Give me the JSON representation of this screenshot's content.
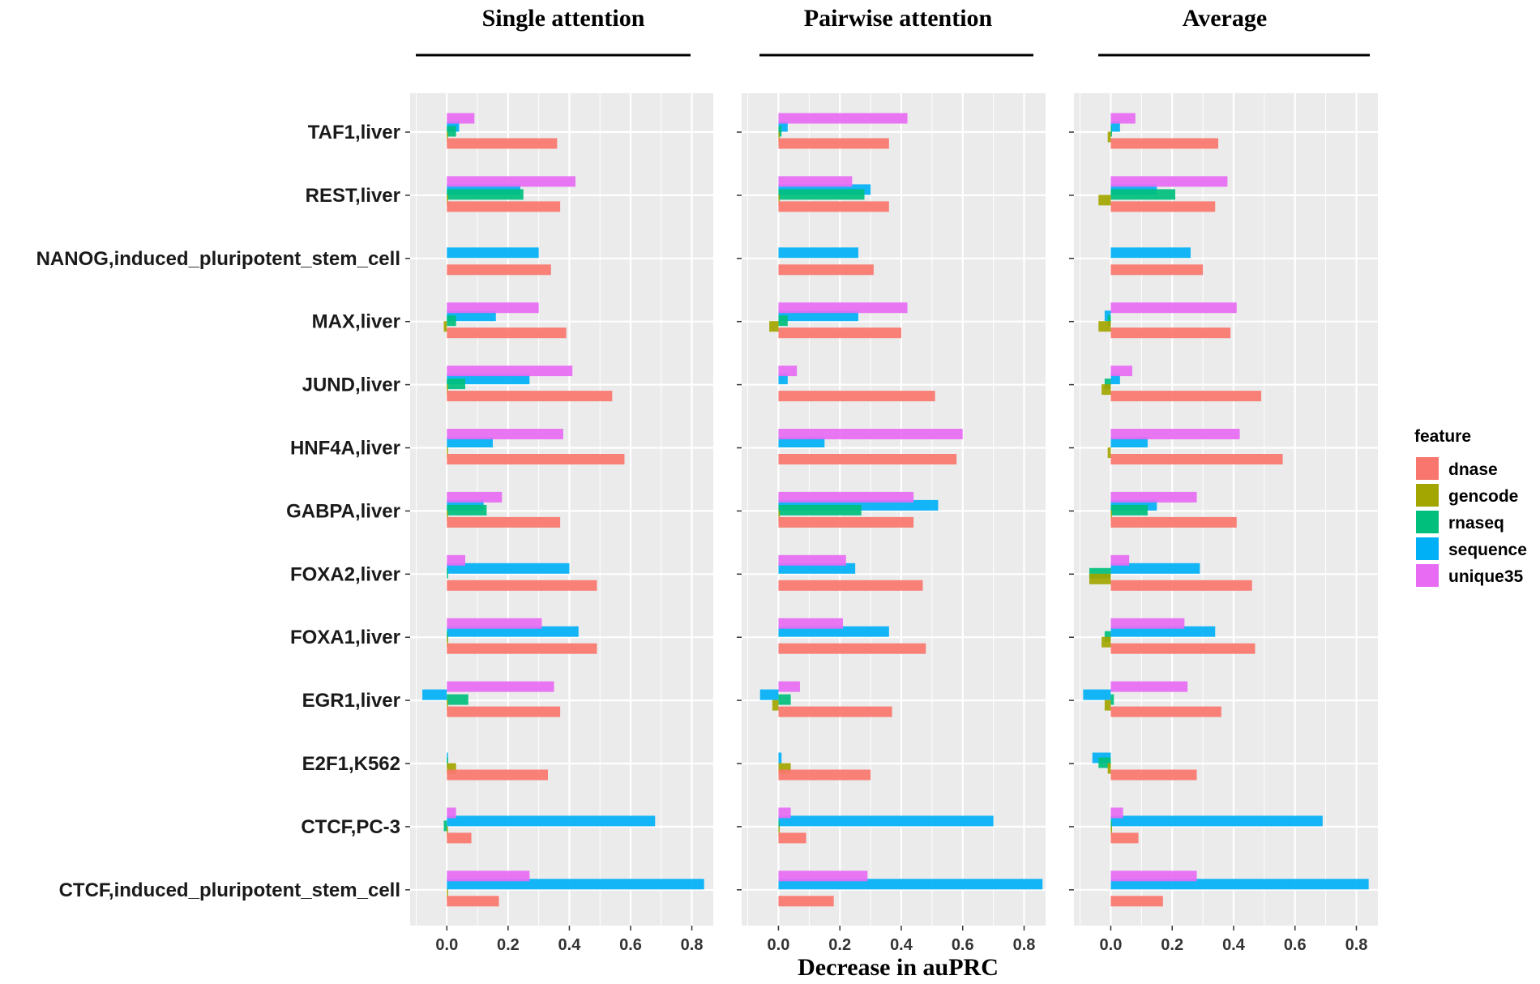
{
  "chart_data": {
    "type": "bar",
    "orientation": "horizontal",
    "panels": [
      "Single attention",
      "Pairwise attention",
      "Average"
    ],
    "xlabel": "Decrease in auPRC",
    "x_ticks": [
      "0.0",
      "0.2",
      "0.4",
      "0.6",
      "0.8"
    ],
    "xlim": [
      -0.12,
      0.87
    ],
    "grid": true,
    "legend": {
      "title": "feature",
      "position": "right"
    },
    "series": [
      {
        "name": "dnase",
        "color": "#f8766d"
      },
      {
        "name": "gencode",
        "color": "#a3a500"
      },
      {
        "name": "rnaseq",
        "color": "#00bf7d"
      },
      {
        "name": "sequence",
        "color": "#00b0f6"
      },
      {
        "name": "unique35",
        "color": "#e76bf3"
      }
    ],
    "categories": [
      "TAF1,liver",
      "REST,liver",
      "NANOG,induced_pluripotent_stem_cell",
      "MAX,liver",
      "JUND,liver",
      "HNF4A,liver",
      "GABPA,liver",
      "FOXA2,liver",
      "FOXA1,liver",
      "EGR1,liver",
      "E2F1,K562",
      "CTCF,PC-3",
      "CTCF,induced_pluripotent_stem_cell"
    ],
    "values": {
      "Single attention": [
        [
          0.36,
          0.0,
          0.03,
          0.04,
          0.09
        ],
        [
          0.37,
          0.0,
          0.25,
          0.24,
          0.42
        ],
        [
          0.34,
          null,
          null,
          0.3,
          null
        ],
        [
          0.39,
          -0.01,
          0.03,
          0.16,
          0.3
        ],
        [
          0.54,
          0.0,
          0.06,
          0.27,
          0.41
        ],
        [
          0.58,
          0.0,
          null,
          0.15,
          0.38
        ],
        [
          0.37,
          0.0,
          0.13,
          0.12,
          0.18
        ],
        [
          0.49,
          null,
          0.0,
          0.4,
          0.06
        ],
        [
          0.49,
          0.0,
          0.0,
          0.43,
          0.31
        ],
        [
          0.37,
          0.0,
          0.07,
          -0.08,
          0.35
        ],
        [
          0.33,
          0.03,
          0.0,
          0.0,
          null
        ],
        [
          0.08,
          0.0,
          -0.01,
          0.68,
          0.03
        ],
        [
          0.17,
          0.0,
          null,
          0.84,
          0.27
        ]
      ],
      "Pairwise attention": [
        [
          0.36,
          0.0,
          0.01,
          0.03,
          0.42
        ],
        [
          0.36,
          0.0,
          0.28,
          0.3,
          0.24
        ],
        [
          0.31,
          null,
          null,
          0.26,
          null
        ],
        [
          0.4,
          -0.03,
          0.03,
          0.26,
          0.42
        ],
        [
          0.51,
          null,
          null,
          0.03,
          0.06
        ],
        [
          0.58,
          null,
          null,
          0.15,
          0.6
        ],
        [
          0.44,
          0.0,
          0.27,
          0.52,
          0.44
        ],
        [
          0.47,
          null,
          null,
          0.25,
          0.22
        ],
        [
          0.48,
          null,
          null,
          0.36,
          0.21
        ],
        [
          0.37,
          -0.02,
          0.04,
          -0.06,
          0.07
        ],
        [
          0.3,
          0.04,
          null,
          0.01,
          null
        ],
        [
          0.09,
          0.0,
          0.0,
          0.7,
          0.04
        ],
        [
          0.18,
          null,
          null,
          0.86,
          0.29
        ]
      ],
      "Average": [
        [
          0.35,
          -0.01,
          0.0,
          0.03,
          0.08
        ],
        [
          0.34,
          -0.04,
          0.21,
          0.15,
          0.38
        ],
        [
          0.3,
          null,
          null,
          0.26,
          null
        ],
        [
          0.39,
          -0.04,
          -0.01,
          -0.02,
          0.41
        ],
        [
          0.49,
          -0.03,
          -0.02,
          0.03,
          0.07
        ],
        [
          0.56,
          -0.01,
          null,
          0.12,
          0.42
        ],
        [
          0.41,
          0.0,
          0.12,
          0.15,
          0.28
        ],
        [
          0.46,
          -0.07,
          -0.07,
          0.29,
          0.06
        ],
        [
          0.47,
          -0.03,
          -0.02,
          0.34,
          0.24
        ],
        [
          0.36,
          -0.02,
          0.01,
          -0.09,
          0.25
        ],
        [
          0.28,
          -0.01,
          -0.04,
          -0.06,
          null
        ],
        [
          0.09,
          0.0,
          0.0,
          0.69,
          0.04
        ],
        [
          0.17,
          null,
          null,
          0.84,
          0.28
        ]
      ]
    }
  }
}
